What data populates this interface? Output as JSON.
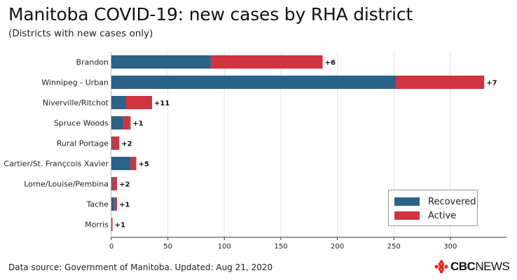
{
  "header": {
    "title": "Manitoba COVID-19: new cases by RHA district",
    "subtitle": "(Districts with new cases only)"
  },
  "footer": {
    "source": "Data source: Government of Manitoba. Updated: Aug 21, 2020",
    "logo_cbc": "CBC",
    "logo_news": "NEWS"
  },
  "colors": {
    "recovered": "#2b6287",
    "active": "#cf3440"
  },
  "chart_data": {
    "type": "bar",
    "orientation": "horizontal",
    "stacked": true,
    "categories": [
      "Brandon",
      "Winnipeg - Urban",
      "Niverville/Ritchot",
      "Spruce Woods",
      "Rural Portage",
      "Cartier/St. Françcois Xavier",
      "Lorne/Louise/Pembina",
      "Tache",
      "Morris"
    ],
    "series": [
      {
        "name": "Recovered",
        "values": [
          88,
          252,
          13,
          11,
          1,
          17,
          1,
          3,
          0
        ]
      },
      {
        "name": "Active",
        "values": [
          99,
          78,
          23,
          6,
          6,
          5,
          4,
          2,
          1
        ]
      }
    ],
    "data_labels": [
      "+6",
      "+7",
      "+11",
      "+1",
      "+2",
      "+5",
      "+2",
      "+1",
      "+1"
    ],
    "xticks": [
      0,
      50,
      100,
      150,
      200,
      250,
      300
    ],
    "xlim": [
      0,
      345
    ],
    "legend_position": "bottom-right",
    "grid": "vertical"
  }
}
